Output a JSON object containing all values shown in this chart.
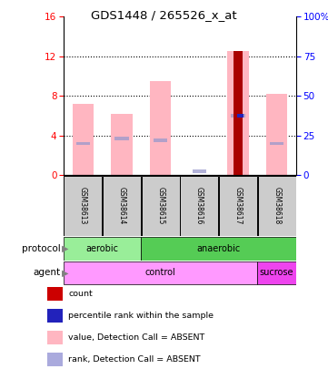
{
  "title": "GDS1448 / 265526_x_at",
  "samples": [
    "GSM38613",
    "GSM38614",
    "GSM38615",
    "GSM38616",
    "GSM38617",
    "GSM38618"
  ],
  "value_bars": [
    7.2,
    6.2,
    9.5,
    0.0,
    12.5,
    8.2
  ],
  "rank_markers": [
    3.2,
    3.7,
    3.5,
    0.4,
    6.0,
    3.2
  ],
  "count_bars": [
    0,
    0,
    0,
    0,
    12.5,
    0
  ],
  "percentile_rank": [
    0,
    0,
    0,
    0,
    6.0,
    0
  ],
  "bar_color_value": "#FFB6C1",
  "bar_color_count": "#AA0000",
  "marker_color_rank": "#9999CC",
  "marker_color_percentile": "#2222BB",
  "ylim_left": [
    0,
    16
  ],
  "ylim_right": [
    0,
    100
  ],
  "yticks_left": [
    0,
    4,
    8,
    12,
    16
  ],
  "yticks_right": [
    0,
    25,
    50,
    75,
    100
  ],
  "background_color": "#FFFFFF",
  "sample_box_color": "#CCCCCC",
  "protocol_aerobic_color": "#99EE99",
  "protocol_anaerobic_color": "#55CC55",
  "agent_control_color": "#FF99FF",
  "agent_sucrose_color": "#EE44EE",
  "legend_items": [
    {
      "label": "count",
      "color": "#CC0000"
    },
    {
      "label": "percentile rank within the sample",
      "color": "#2222BB"
    },
    {
      "label": "value, Detection Call = ABSENT",
      "color": "#FFB6C1"
    },
    {
      "label": "rank, Detection Call = ABSENT",
      "color": "#AAAADD"
    }
  ]
}
